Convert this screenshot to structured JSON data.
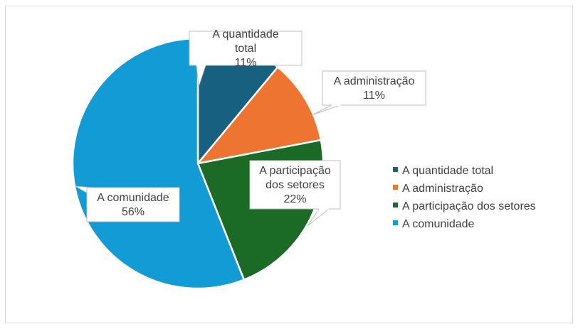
{
  "chart_data": {
    "type": "pie",
    "title": "",
    "start_angle_deg": 0,
    "direction": "clockwise",
    "slices": [
      {
        "label": "A quantidade total",
        "value": 11,
        "display": "11%",
        "color": "#17607f"
      },
      {
        "label": "A administração",
        "value": 11,
        "display": "11%",
        "color": "#ed7431"
      },
      {
        "label": "A participação dos setores",
        "value": 22,
        "display": "22%",
        "color": "#1b6b27"
      },
      {
        "label": "A comunidade",
        "value": 56,
        "display": "56%",
        "color": "#139bd6"
      }
    ],
    "legend_position": "right"
  }
}
